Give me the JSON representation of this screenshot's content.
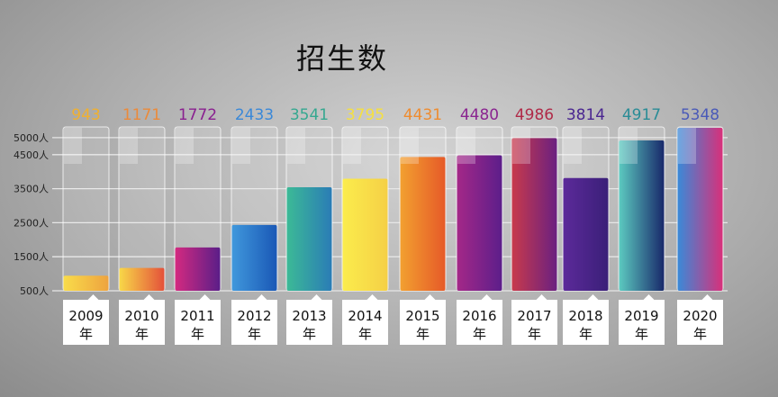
{
  "chart_data": {
    "type": "bar",
    "title": "招生数",
    "categories": [
      "2009年",
      "2010年",
      "2011年",
      "2012年",
      "2013年",
      "2014年",
      "2015年",
      "2016年",
      "2017年",
      "2018年",
      "2019年",
      "2020年"
    ],
    "category_years": [
      "2009",
      "2010",
      "2011",
      "2012",
      "2013",
      "2014",
      "2015",
      "2016",
      "2017",
      "2018",
      "2019",
      "2020"
    ],
    "category_suffix": "年",
    "values": [
      943,
      1171,
      1772,
      2433,
      3541,
      3795,
      4431,
      4480,
      4986,
      3814,
      4917,
      5348
    ],
    "data_labels": [
      "943",
      "1171",
      "1772",
      "2433",
      "3541",
      "3795",
      "4431",
      "4480",
      "4986",
      "3814",
      "4917",
      "5348"
    ],
    "y_ticks": [
      500,
      1500,
      2500,
      3500,
      4500,
      5000
    ],
    "y_tick_labels": [
      "500人",
      "1500人",
      "2500人",
      "3500人",
      "4500人",
      "5000人"
    ],
    "grid": true,
    "colors": [
      [
        "#f9dc4a",
        "#eea33f"
      ],
      [
        "#f8d848",
        "#e4513a"
      ],
      [
        "#d42a80",
        "#5a1e88"
      ],
      [
        "#4098dc",
        "#1a58b6"
      ],
      [
        "#3cba96",
        "#2a7cb6"
      ],
      [
        "#fbec4c",
        "#f5d046"
      ],
      [
        "#f2a030",
        "#e65a28"
      ],
      [
        "#a42888",
        "#5c1e8a"
      ],
      [
        "#c83a4c",
        "#6a2080"
      ],
      [
        "#5c2a9a",
        "#3a1f78"
      ],
      [
        "#5ccac0",
        "#18286a"
      ],
      [
        "#3a8ad8",
        "#d8307a"
      ]
    ],
    "label_colors": [
      "#f0b030",
      "#eb8a3a",
      "#8a2090",
      "#3a88d8",
      "#35a890",
      "#f5e040",
      "#ee8c30",
      "#8a2590",
      "#b02a48",
      "#4a2690",
      "#2a8c96",
      "#4a5ab8"
    ]
  }
}
